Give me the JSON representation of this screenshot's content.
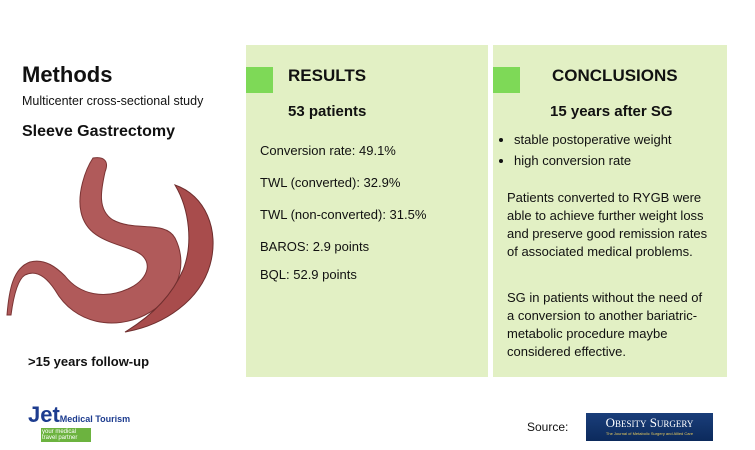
{
  "methods": {
    "title": "Methods",
    "study": "Multicenter cross-sectional study",
    "procedure": "Sleeve Gastrectomy",
    "followup": ">15 years follow-up"
  },
  "results": {
    "title": "RESULTS",
    "subtitle": "53 patients",
    "items": [
      "Conversion rate: 49.1%",
      "TWL (converted): 32.9%",
      "TWL (non-converted): 31.5%",
      "BAROS: 2.9 points",
      "BQL: 52.9 points"
    ]
  },
  "conclusions": {
    "title": "CONCLUSIONS",
    "subtitle": "15 years after SG",
    "bullets": [
      "stable postoperative weight",
      "high conversion rate"
    ],
    "paragraphs": [
      "Patients converted to RYGB were able to achieve further weight loss and preserve good remission rates of associated medical problems.",
      "SG in patients without the need of a conversion to another bariatric-metabolic procedure maybe considered effective."
    ]
  },
  "footer": {
    "logo_brand": "Jet",
    "logo_name": "Medical Tourism",
    "logo_tagline": "your medical travel partner",
    "source_label": "Source:",
    "journal_name": "Obesity Surgery",
    "journal_tagline": "The Journal of Metabolic Surgery and Allied Care"
  },
  "colors": {
    "panel": "#e2f0c4",
    "accent": "#7ed957"
  }
}
